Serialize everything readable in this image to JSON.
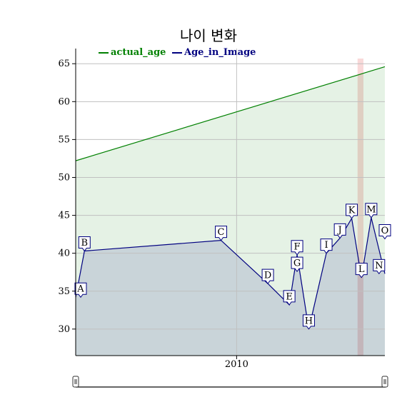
{
  "chart_data": {
    "type": "line",
    "title": "나이 변화",
    "xlabel": "",
    "ylabel": "",
    "xlim": [
      2001.75,
      2017.6
    ],
    "ylim": [
      26.5,
      67
    ],
    "x_ticks": [
      2010
    ],
    "y_ticks": [
      30,
      35,
      40,
      45,
      50,
      55,
      60,
      65
    ],
    "grid": true,
    "legend_position": "top-left",
    "colors": {
      "actual_age": "#008000",
      "Age_in_Image": "#000080"
    },
    "series": [
      {
        "name": "actual_age",
        "x": [
          2001.75,
          2017.6
        ],
        "y": [
          52.2,
          64.6
        ]
      },
      {
        "name": "Age_in_Image",
        "x": [
          2001.75,
          2002.2,
          2009.2,
          2011.6,
          2012.7,
          2013.1,
          2013.7,
          2014.6,
          2015.3,
          2015.9,
          2016.4,
          2016.9,
          2017.6
        ],
        "y": [
          34.2,
          40.3,
          41.7,
          36.0,
          33.2,
          39.8,
          30.0,
          40.0,
          42.0,
          44.6,
          36.8,
          44.7,
          37.3
        ]
      }
    ],
    "flags": [
      {
        "label": "A",
        "x": 2001.75,
        "y": 34.2
      },
      {
        "label": "B",
        "x": 2002.2,
        "y": 40.3
      },
      {
        "label": "C",
        "x": 2009.2,
        "y": 41.7
      },
      {
        "label": "D",
        "x": 2011.6,
        "y": 36.0
      },
      {
        "label": "E",
        "x": 2012.7,
        "y": 33.2
      },
      {
        "label": "F",
        "x": 2013.1,
        "y": 39.8
      },
      {
        "label": "G",
        "x": 2013.1,
        "y": 37.6
      },
      {
        "label": "H",
        "x": 2013.7,
        "y": 30.0
      },
      {
        "label": "I",
        "x": 2014.6,
        "y": 40.0
      },
      {
        "label": "J",
        "x": 2015.3,
        "y": 42.0
      },
      {
        "label": "K",
        "x": 2015.9,
        "y": 44.6
      },
      {
        "label": "L",
        "x": 2016.4,
        "y": 36.8
      },
      {
        "label": "M",
        "x": 2016.9,
        "y": 44.7
      },
      {
        "label": "N",
        "x": 2017.3,
        "y": 37.3
      },
      {
        "label": "O",
        "x": 2017.6,
        "y": 41.9
      }
    ],
    "highlight_band": {
      "x_start": 2016.2,
      "x_end": 2016.5
    }
  }
}
